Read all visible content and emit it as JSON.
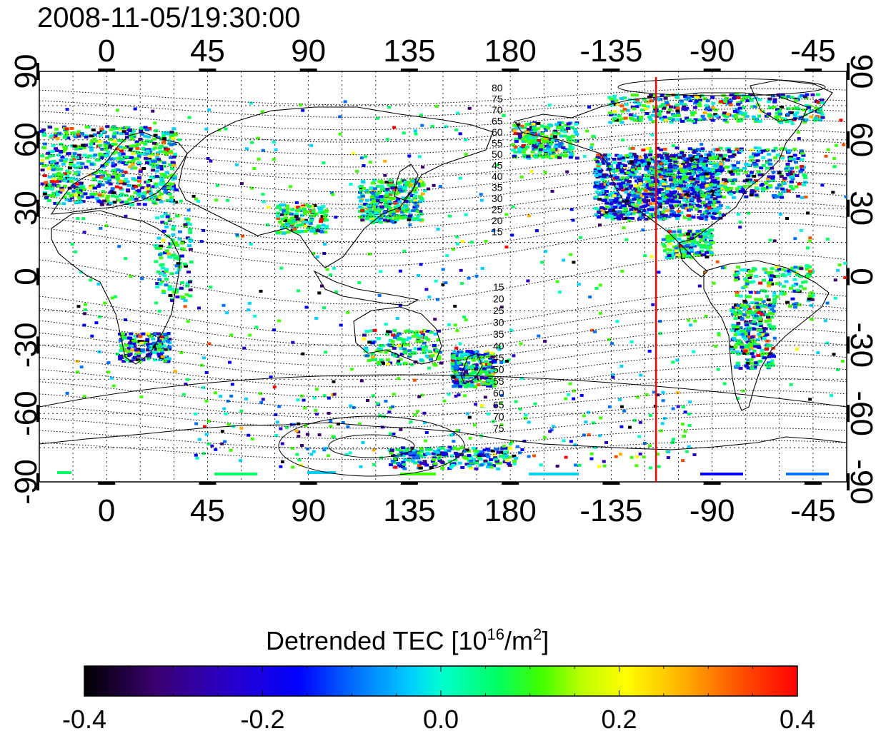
{
  "timestamp": "2008-11-05/19:30:00",
  "map": {
    "lon_ticks": [
      "0",
      "45",
      "90",
      "135",
      "180",
      "-135",
      "-90",
      "-45"
    ],
    "lat_ticks": [
      "90",
      "60",
      "30",
      "0",
      "-30",
      "-60",
      "-90"
    ],
    "grid": true,
    "magnetic_lat_labels_north": [
      "80",
      "75",
      "70",
      "65",
      "60",
      "55",
      "50",
      "45",
      "40",
      "35",
      "30",
      "25",
      "20",
      "15"
    ],
    "magnetic_lat_labels_south": [
      "15",
      "20",
      "25",
      "30",
      "35",
      "40",
      "45",
      "50",
      "55",
      "60",
      "65",
      "70",
      "75"
    ],
    "terminator_marker_lon": -115,
    "marker_color": "#ff0000"
  },
  "colorbar": {
    "title_main": "Detrended TEC  [10",
    "title_sup1": "16",
    "title_mid": "/m",
    "title_sup2": "2",
    "title_end": "]",
    "ticks": [
      "-0.4",
      "-0.2",
      "0.0",
      "0.2",
      "0.4"
    ],
    "range": [
      -0.4,
      0.4
    ],
    "colors": [
      "#000000",
      "#3a0070",
      "#2a00c8",
      "#0000ff",
      "#0070ff",
      "#00d0ff",
      "#00ffd0",
      "#00ff60",
      "#40ff00",
      "#c0ff00",
      "#ffff00",
      "#ffb000",
      "#ff5000",
      "#ff0000"
    ]
  }
}
